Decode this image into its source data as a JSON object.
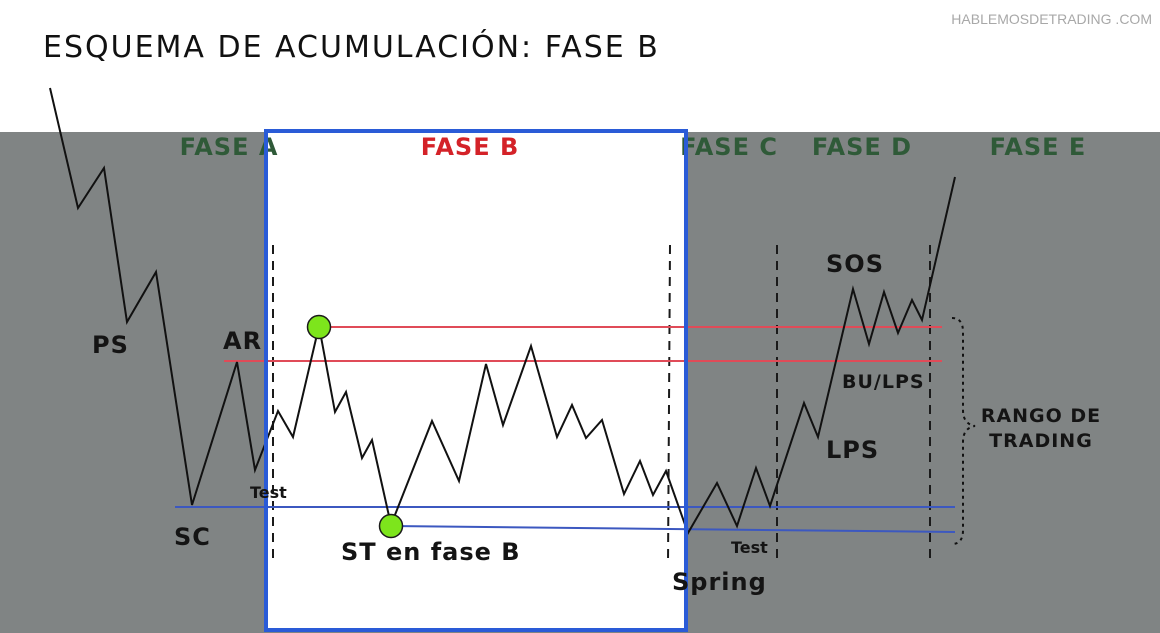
{
  "title": "ESQUEMA DE ACUMULACIÓN: FASE B",
  "watermark": "HABLEMOSDETRADING .COM",
  "phases": {
    "a": "FASE A",
    "b": "FASE B",
    "c": "FASE C",
    "d": "FASE D",
    "e": "FASE E"
  },
  "events": {
    "ps": "PS",
    "sc": "SC",
    "ar": "AR",
    "test_a": "Test",
    "st_b": "ST en fase B",
    "spring": "Spring",
    "test_c": "Test",
    "lps": "LPS",
    "bu_lps": "BU/LPS",
    "sos": "SOS"
  },
  "range_label": {
    "line1": "RANGO DE",
    "line2": "TRADING"
  },
  "colors": {
    "background_gray": "#808484",
    "highlight_box": "#2a5bd7",
    "resistance_line": "#e04b58",
    "support_line": "#3c58c0",
    "marker": "#7de51c",
    "phase_b_label": "#d42228",
    "phase_label": "#2f5a38"
  }
}
